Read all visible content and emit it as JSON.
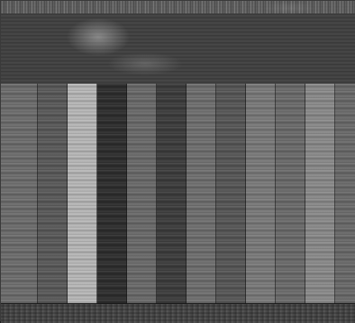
{
  "columns": [
    {
      "id": "col-1",
      "tone": "#6d6d6d"
    },
    {
      "id": "col-2",
      "tone": "#5a5a5a"
    },
    {
      "id": "col-3",
      "tone": "#b7b7b7"
    },
    {
      "id": "col-4",
      "tone": "#2e2e2e"
    },
    {
      "id": "col-5",
      "tone": "#6a6a6a"
    },
    {
      "id": "col-6",
      "tone": "#3d3d3d"
    },
    {
      "id": "col-7",
      "tone": "#6f6f6f"
    },
    {
      "id": "col-8",
      "tone": "#575757"
    },
    {
      "id": "col-9",
      "tone": "#7a7a7a"
    },
    {
      "id": "col-10",
      "tone": "#6b6b6b"
    },
    {
      "id": "col-11",
      "tone": "#8a8a8a"
    },
    {
      "id": "col-12",
      "tone": "#6a6a6a"
    }
  ]
}
